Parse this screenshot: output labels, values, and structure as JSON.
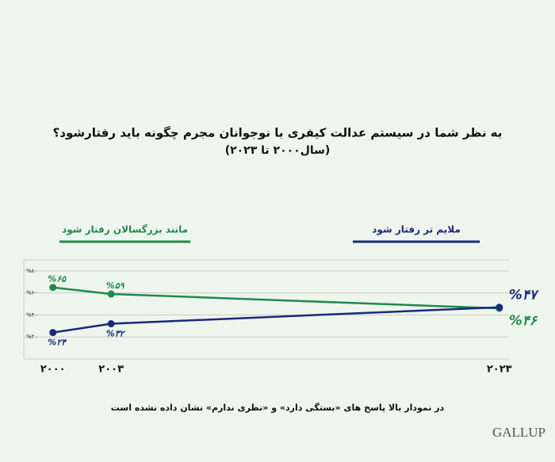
{
  "chart_data": {
    "type": "line",
    "title": "به نظر شما در سیستم عدالت کیفری با نوجوانان مجرم چگونه باید رفتارشود؟",
    "subtitle": "(سال۲۰۰۰ تا ۲۰۲۳)",
    "x": [
      2000,
      2003,
      2023
    ],
    "xlim": [
      1998.5,
      2023.5
    ],
    "xticks": [
      {
        "value": 2000,
        "label": "۲۰۰۰"
      },
      {
        "value": 2003,
        "label": "۲۰۰۳"
      },
      {
        "value": 2023,
        "label": "۲۰۲۳"
      }
    ],
    "ylim": [
      0,
      90
    ],
    "yticks": [
      {
        "value": 20,
        "label": "%۲۰"
      },
      {
        "value": 40,
        "label": "%۴۰"
      },
      {
        "value": 60,
        "label": "%۶۰"
      },
      {
        "value": 80,
        "label": "%۸۰"
      }
    ],
    "grid": true,
    "series": [
      {
        "name": "مانند بزرگسالان رفتار شود",
        "color": "#1f8a4c",
        "values": [
          65,
          59,
          46
        ],
        "value_labels": [
          "%۶۵",
          "%۵۹",
          "%۴۶"
        ]
      },
      {
        "name": "ملایم تر رفتار شود",
        "color": "#1b2a78",
        "values": [
          24,
          32,
          47
        ],
        "value_labels": [
          "%۲۴",
          "%۳۲",
          "%۴۷"
        ]
      }
    ],
    "note": "در نمودار بالا پاسخ های «بستگی دارد» و «نظری ندارم» نشان داده نشده است",
    "brand": "GALLUP"
  }
}
